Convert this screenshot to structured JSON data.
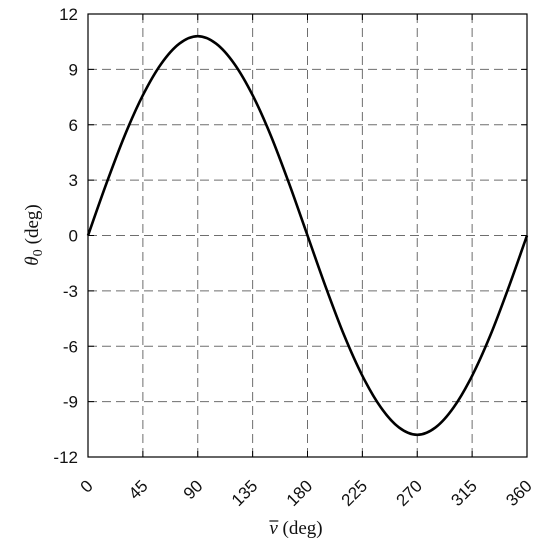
{
  "chart_data": {
    "type": "line",
    "title": "",
    "xlabel": {
      "symbol": "ν",
      "unit": "(deg)"
    },
    "ylabel": {
      "symbol": "θ",
      "subscript": "0",
      "unit": "(deg)"
    },
    "xlim": [
      0,
      360
    ],
    "ylim": [
      -12,
      12
    ],
    "xticks": [
      0,
      45,
      90,
      135,
      180,
      225,
      270,
      315,
      360
    ],
    "yticks": [
      12,
      9,
      6,
      3,
      0,
      -3,
      -6,
      -9,
      -12
    ],
    "xtick_labels": [
      "0",
      "45",
      "90",
      "135",
      "180",
      "225",
      "270",
      "315",
      "360"
    ],
    "ytick_labels": [
      "12",
      "9",
      "6",
      "3",
      "0",
      "-3",
      "-6",
      "-9",
      "-12"
    ],
    "grid": true,
    "grid_style": "dashed",
    "line_color": "#000000",
    "series": [
      {
        "x": [
          0,
          15,
          30,
          45,
          60,
          75,
          90,
          105,
          120,
          135,
          150,
          165,
          180,
          195,
          210,
          225,
          240,
          255,
          270,
          285,
          300,
          315,
          330,
          345,
          360
        ],
        "y": [
          0,
          2.8,
          5.4,
          7.6,
          9.3,
          10.4,
          10.8,
          10.4,
          9.3,
          7.6,
          5.4,
          2.8,
          0,
          -2.8,
          -5.4,
          -7.6,
          -9.3,
          -10.4,
          -10.8,
          -10.4,
          -9.3,
          -7.6,
          -5.4,
          -2.8,
          0
        ]
      }
    ]
  }
}
